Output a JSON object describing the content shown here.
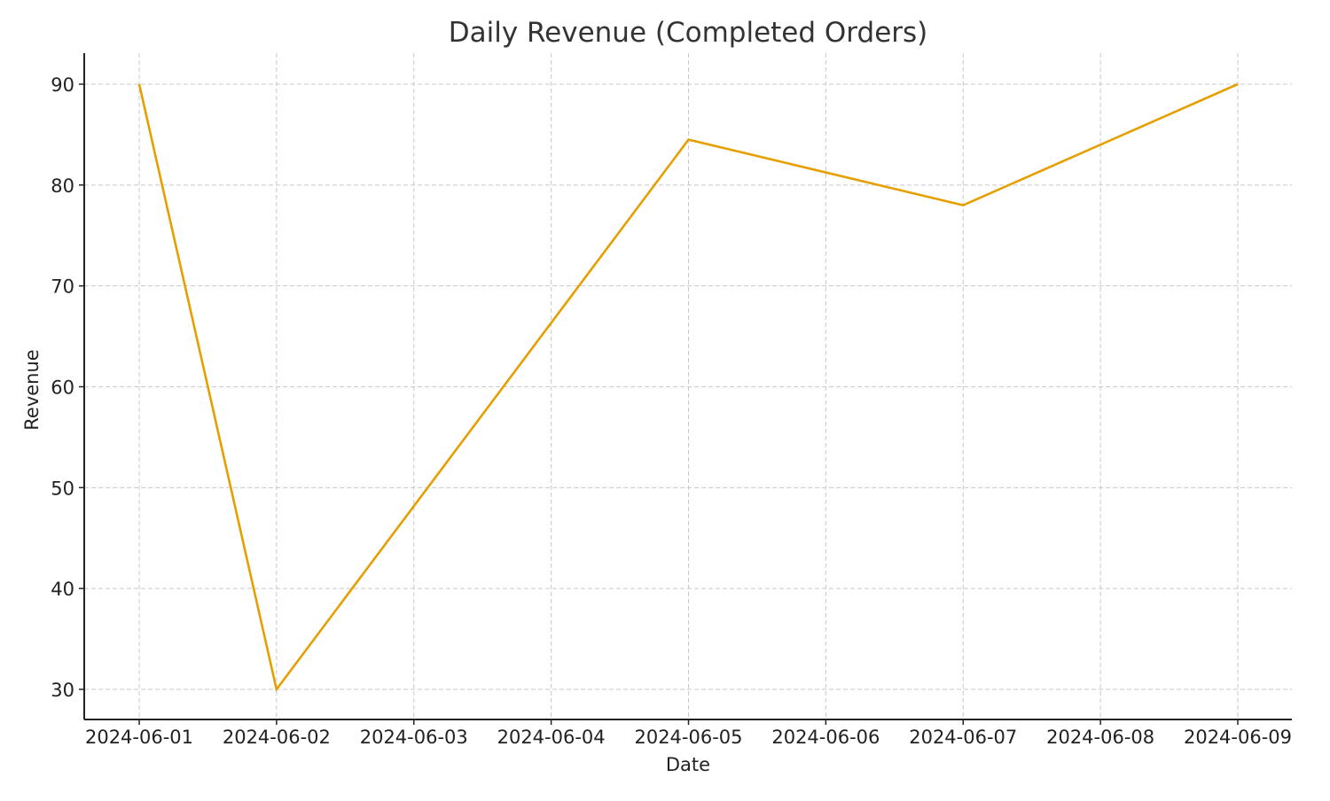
{
  "chart_data": {
    "type": "line",
    "title": "Daily Revenue (Completed Orders)",
    "xlabel": "Date",
    "ylabel": "Revenue",
    "x_ticks": [
      "2024-06-01",
      "2024-06-02",
      "2024-06-03",
      "2024-06-04",
      "2024-06-05",
      "2024-06-06",
      "2024-06-07",
      "2024-06-08",
      "2024-06-09"
    ],
    "y_ticks": [
      30,
      40,
      50,
      60,
      70,
      80,
      90
    ],
    "ylim": [
      27,
      93
    ],
    "grid": true,
    "legend": null,
    "series": [
      {
        "name": "Revenue",
        "color": "#E69F00",
        "x": [
          "2024-06-01",
          "2024-06-02",
          "2024-06-05",
          "2024-06-07",
          "2024-06-09"
        ],
        "values": [
          90,
          30,
          84.5,
          78,
          90
        ]
      }
    ]
  }
}
